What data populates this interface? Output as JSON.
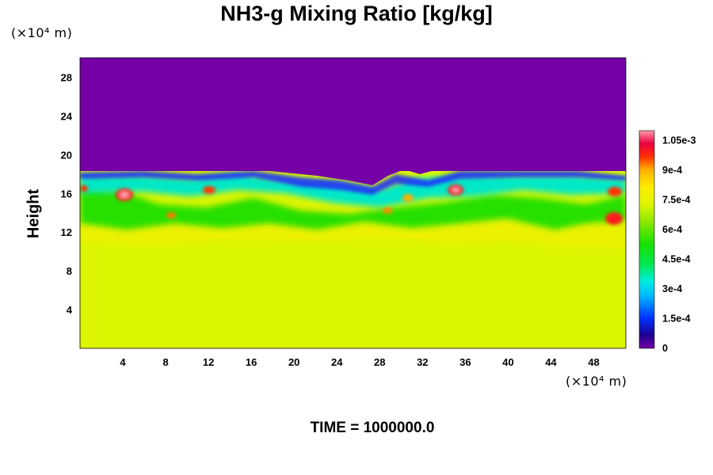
{
  "chart_data": {
    "type": "heatmap",
    "title": "NH3-g Mixing Ratio [kg/kg]",
    "ylabel": "Height",
    "y_unit": "(×10⁴ m)",
    "x_unit": "(×10⁴ m)",
    "x_ticks": [
      4,
      8,
      12,
      16,
      20,
      24,
      28,
      32,
      36,
      40,
      44,
      48
    ],
    "y_ticks": [
      4,
      8,
      12,
      16,
      20,
      24,
      28
    ],
    "xlim": [
      0,
      51
    ],
    "ylim": [
      0,
      30
    ],
    "colorbar": {
      "min": 0,
      "max": 0.0011,
      "ticks": [
        {
          "value": 0,
          "label": "0"
        },
        {
          "value": 0.00015,
          "label": "1.5e-4"
        },
        {
          "value": 0.0003,
          "label": "3e-4"
        },
        {
          "value": 0.00045,
          "label": "4.5e-4"
        },
        {
          "value": 0.0006,
          "label": "6e-4"
        },
        {
          "value": 0.00075,
          "label": "7.5e-4"
        },
        {
          "value": 0.0009,
          "label": "9e-4"
        },
        {
          "value": 0.00105,
          "label": "1.05e-3"
        }
      ]
    },
    "field_description": {
      "lower_region_value": 0.00076,
      "upper_region_value": 0,
      "cloud_top_height_approx": 17.5,
      "mixed_layer_range": [
        10,
        17.5
      ]
    },
    "caption": "TIME = 1000000.0"
  }
}
